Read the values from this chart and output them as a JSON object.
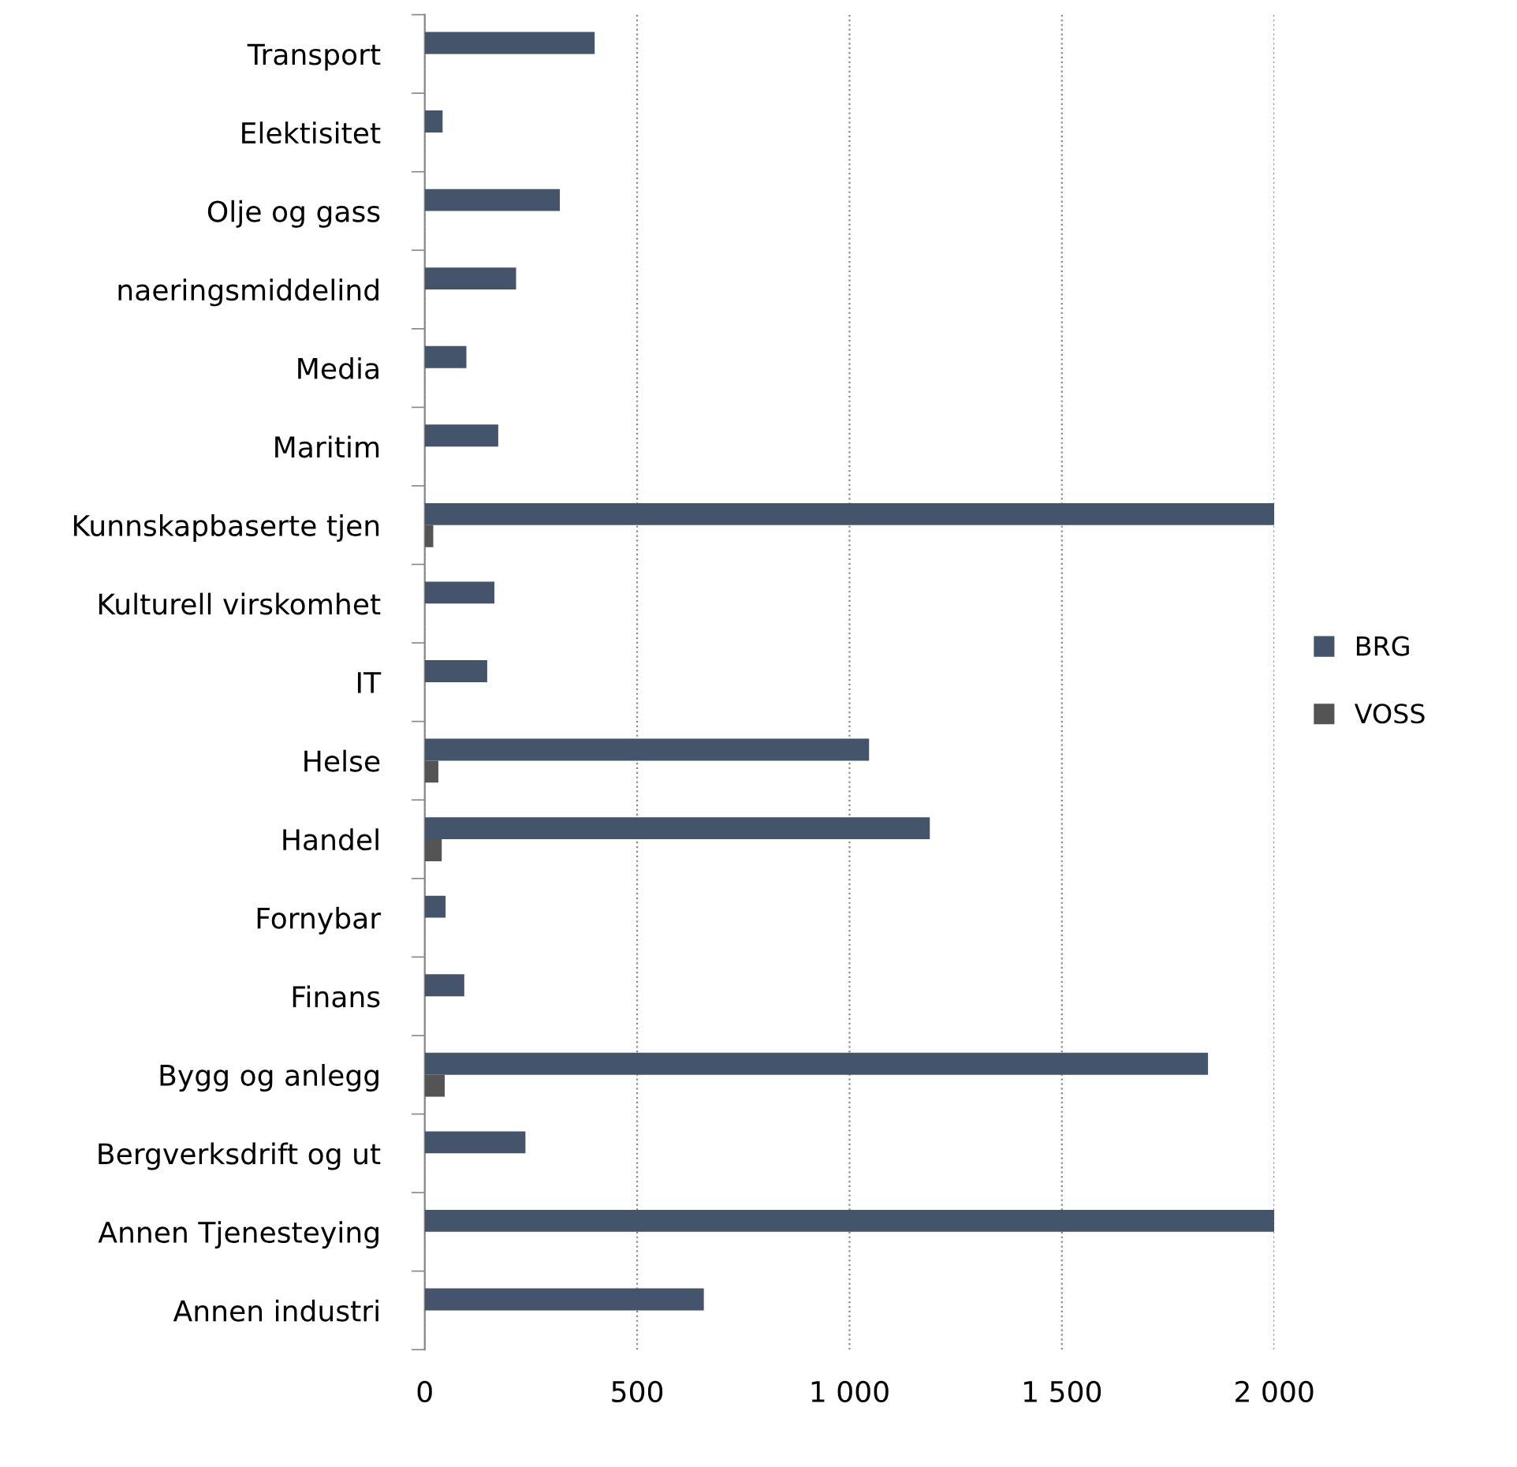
{
  "chart_data": {
    "type": "bar",
    "orientation": "horizontal",
    "categories": [
      "Transport",
      "Elektisitet",
      "Olje og gass",
      "naeringsmiddelind",
      "Media",
      "Maritim",
      "Kunnskapbaserte tjen",
      "Kulturell virskomhet",
      "IT",
      "Helse",
      "Handel",
      "Fornybar",
      "Finans",
      "Bygg og anlegg",
      "Bergverksdrift og ut",
      "Annen Tjenesteying",
      "Annen industri"
    ],
    "series": [
      {
        "name": "BRG",
        "color": "#44546a",
        "values": [
          400,
          42,
          318,
          215,
          98,
          173,
          2000,
          164,
          147,
          1046,
          1189,
          49,
          93,
          1844,
          237,
          2000,
          657
        ]
      },
      {
        "name": "VOSS",
        "color": "#545454",
        "values": [
          null,
          null,
          null,
          null,
          null,
          null,
          20,
          null,
          null,
          32,
          40,
          null,
          null,
          47,
          null,
          null,
          null
        ]
      }
    ],
    "xlim": [
      0,
      2000
    ],
    "xticks": [
      0,
      500,
      {
        "value": 1000,
        "label": "1 000"
      },
      {
        "value": 1500,
        "label": "1 500"
      },
      {
        "value": 2000,
        "label": "2 000"
      }
    ],
    "grid": "x",
    "legend": "right"
  }
}
